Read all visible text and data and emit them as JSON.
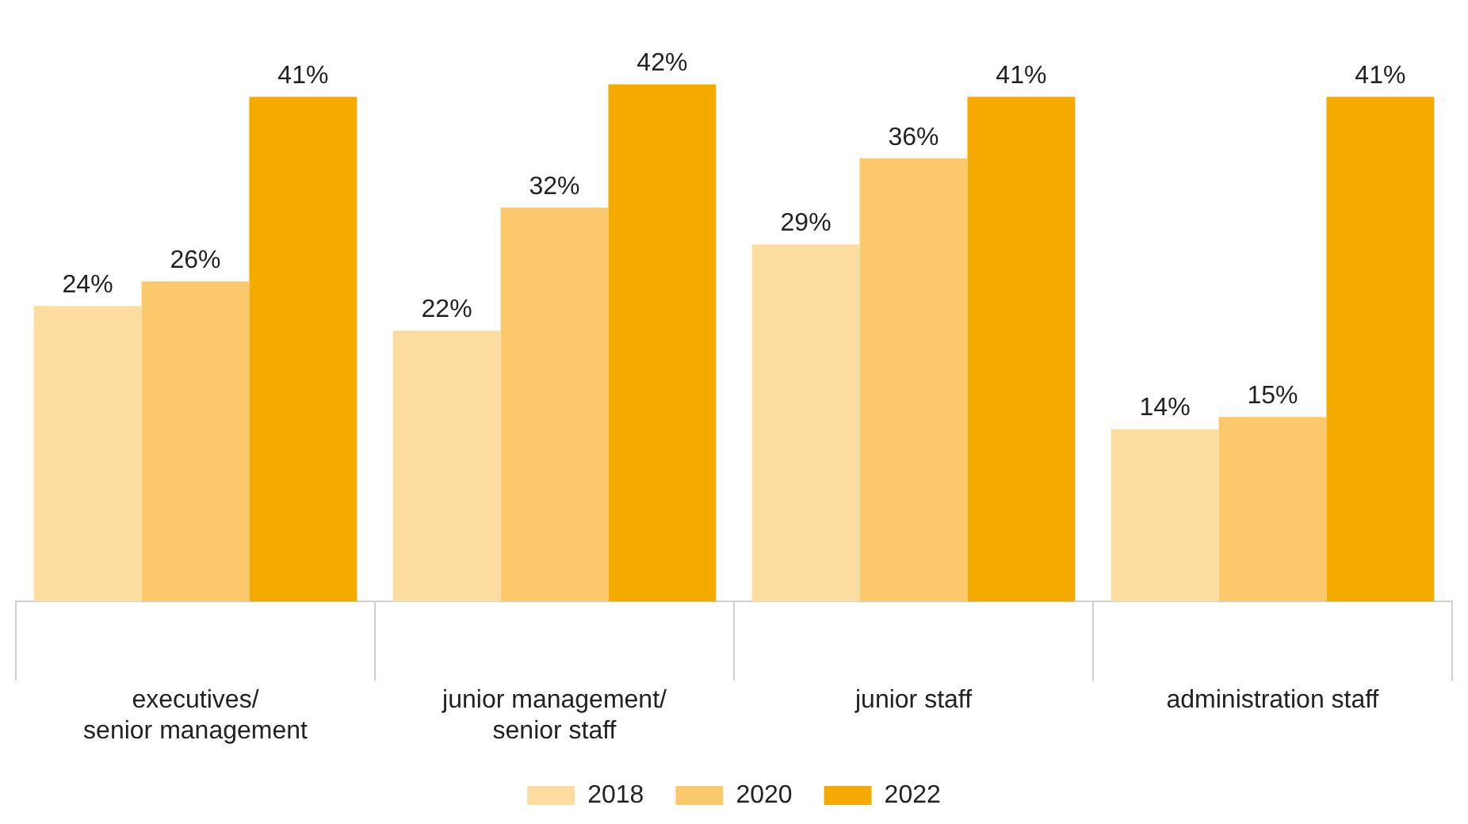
{
  "chart_data": {
    "type": "bar",
    "categories": [
      "executives/\nsenior management",
      "junior management/\nsenior staff",
      "junior staff",
      "administration staff"
    ],
    "series": [
      {
        "name": "2018",
        "color": "#fddc9f",
        "values": [
          24,
          22,
          29,
          14
        ],
        "value_labels": [
          "24%",
          "22%",
          "29%",
          "14%"
        ]
      },
      {
        "name": "2020",
        "color": "#fbc96b",
        "values": [
          26,
          32,
          36,
          15
        ],
        "value_labels": [
          "26%",
          "32%",
          "36%",
          "15%"
        ]
      },
      {
        "name": "2022",
        "color": "#f5aa00",
        "values": [
          41,
          42,
          41,
          41
        ],
        "value_labels": [
          "41%",
          "42%",
          "41%",
          "41%"
        ]
      }
    ],
    "legend": "bottom",
    "grid": false
  }
}
